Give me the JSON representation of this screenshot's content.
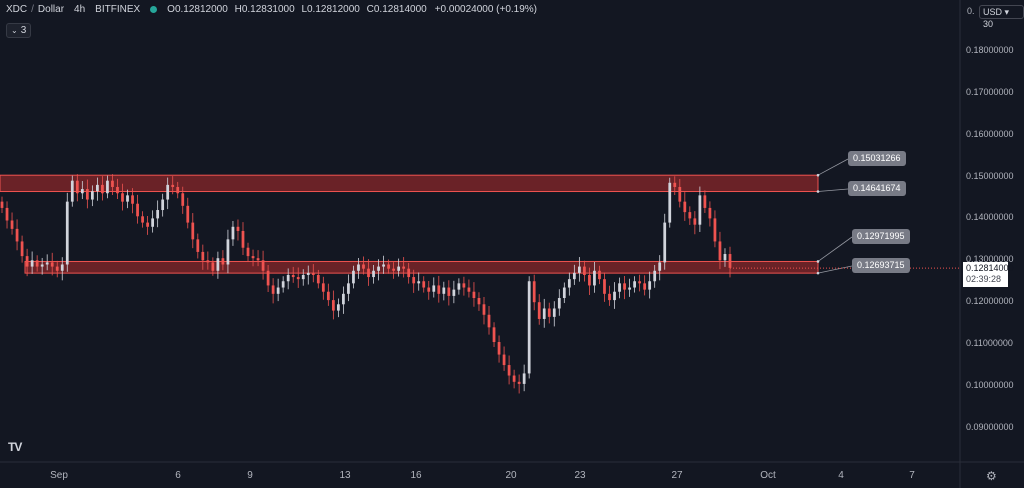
{
  "legend": {
    "symbol": "XDC",
    "quote": "Dollar",
    "interval": "4h",
    "exchange": "BITFINEX",
    "open_label": "O",
    "open": "0.12812000",
    "high_label": "H",
    "high": "0.12831000",
    "low_label": "L",
    "low": "0.12812000",
    "close_label": "C",
    "close": "0.12814000",
    "change": "+0.00024000 (+0.19%)",
    "status_color": "#26a69a"
  },
  "indicator_badge": {
    "count": "3",
    "icon": "chevron-down-icon"
  },
  "price_scale": {
    "currency": "USD ▾ 30",
    "top_label": "0.",
    "ticks": [
      "0.18000000",
      "0.17000000",
      "0.16000000",
      "0.15000000",
      "0.14000000",
      "0.13000000",
      "0.12000000",
      "0.11000000",
      "0.10000000",
      "0.09000000"
    ]
  },
  "time_axis": {
    "ticks": [
      "Sep",
      "6",
      "9",
      "13",
      "16",
      "20",
      "23",
      "27",
      "Oct",
      "4",
      "7"
    ]
  },
  "levels": {
    "upper_top": "0.15031266",
    "upper_bottom": "0.14641674",
    "lower_top": "0.12971995",
    "lower_bottom": "0.12693715"
  },
  "current_price": {
    "price": "0.12814000",
    "countdown": "02:39:28"
  },
  "colors": {
    "up": "#d1d4dc",
    "down": "#ef5350",
    "zone_fill": "#7a2528",
    "zone_edge": "#ef5350",
    "background": "#131722"
  },
  "logo": "TV",
  "chart_data": {
    "type": "candlestick",
    "title": "XDC / Dollar 4h BITFINEX",
    "xlabel": "",
    "ylabel": "",
    "ylim": [
      0.0845,
      0.1894
    ],
    "x_ticks": [
      "Sep",
      "6",
      "9",
      "13",
      "16",
      "20",
      "23",
      "27",
      "Oct",
      "4",
      "7"
    ],
    "levels": [
      0.15031266,
      0.14641674,
      0.12971995,
      0.12693715
    ],
    "zones": [
      [
        0.14641674,
        0.15031266
      ],
      [
        0.12693715,
        0.12971995
      ]
    ],
    "last_price": 0.12814,
    "series": [
      {
        "name": "XDC / Dollar",
        "values": [
          0.1425,
          0.1395,
          0.1375,
          0.1345,
          0.131,
          0.1285,
          0.13,
          0.1285,
          0.129,
          0.1295,
          0.1285,
          0.1275,
          0.129,
          0.144,
          0.149,
          0.146,
          0.147,
          0.1445,
          0.1465,
          0.148,
          0.146,
          0.149,
          0.1475,
          0.146,
          0.144,
          0.1455,
          0.1435,
          0.1405,
          0.139,
          0.138,
          0.14,
          0.142,
          0.1445,
          0.148,
          0.1475,
          0.146,
          0.143,
          0.139,
          0.135,
          0.132,
          0.13,
          0.1295,
          0.1275,
          0.1305,
          0.129,
          0.135,
          0.138,
          0.137,
          0.133,
          0.131,
          0.1305,
          0.13,
          0.1275,
          0.124,
          0.122,
          0.1235,
          0.125,
          0.1265,
          0.126,
          0.1255,
          0.1265,
          0.127,
          0.1265,
          0.1245,
          0.1225,
          0.1205,
          0.118,
          0.1195,
          0.122,
          0.1245,
          0.1275,
          0.129,
          0.128,
          0.126,
          0.1275,
          0.1285,
          0.129,
          0.128,
          0.1275,
          0.1285,
          0.128,
          0.126,
          0.1245,
          0.125,
          0.1235,
          0.1225,
          0.124,
          0.122,
          0.1235,
          0.1215,
          0.123,
          0.1245,
          0.1235,
          0.1225,
          0.121,
          0.1195,
          0.117,
          0.114,
          0.1105,
          0.1075,
          0.105,
          0.1025,
          0.101,
          0.1005,
          0.103,
          0.125,
          0.12,
          0.116,
          0.1185,
          0.1165,
          0.1185,
          0.121,
          0.1235,
          0.1255,
          0.127,
          0.1285,
          0.1265,
          0.124,
          0.1275,
          0.1255,
          0.122,
          0.1205,
          0.1225,
          0.1245,
          0.123,
          0.1235,
          0.125,
          0.1245,
          0.123,
          0.125,
          0.1275,
          0.1295,
          0.139,
          0.1485,
          0.1475,
          0.144,
          0.1415,
          0.14,
          0.1385,
          0.1455,
          0.1425,
          0.14,
          0.1345,
          0.13,
          0.1315,
          0.1282
        ]
      }
    ]
  }
}
